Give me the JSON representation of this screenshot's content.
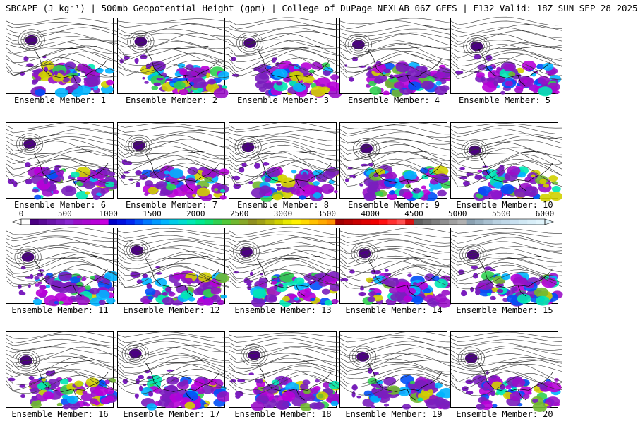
{
  "title": "SBCAPE (J kg⁻¹) | 500mb Geopotential Height (gpm) | College of DuPage NEXLAB 06Z GEFS | F132 Valid: 18Z SUN SEP 28 2025",
  "panel_label_prefix": "Ensemble Member:",
  "members": [
    {
      "label": "Ensemble Member: 1"
    },
    {
      "label": "Ensemble Member: 2"
    },
    {
      "label": "Ensemble Member: 3"
    },
    {
      "label": "Ensemble Member: 4"
    },
    {
      "label": "Ensemble Member: 5"
    },
    {
      "label": "Ensemble Member: 6"
    },
    {
      "label": "Ensemble Member: 7"
    },
    {
      "label": "Ensemble Member: 8"
    },
    {
      "label": "Ensemble Member: 9"
    },
    {
      "label": "Ensemble Member: 10"
    },
    {
      "label": "Ensemble Member: 11"
    },
    {
      "label": "Ensemble Member: 12"
    },
    {
      "label": "Ensemble Member: 13"
    },
    {
      "label": "Ensemble Member: 14"
    },
    {
      "label": "Ensemble Member: 15"
    },
    {
      "label": "Ensemble Member: 16"
    },
    {
      "label": "Ensemble Member: 17"
    },
    {
      "label": "Ensemble Member: 18"
    },
    {
      "label": "Ensemble Member: 19"
    },
    {
      "label": "Ensemble Member: 20"
    }
  ],
  "colorbar": {
    "min": 0,
    "max": 6000,
    "step": 100,
    "tick_labels": [
      "0",
      "500",
      "1000",
      "1500",
      "2000",
      "2500",
      "3000",
      "3500",
      "4000",
      "4500",
      "5000",
      "5500",
      "6000"
    ],
    "tick_values": [
      0,
      500,
      1000,
      1500,
      2000,
      2500,
      3000,
      3500,
      4000,
      4500,
      5000,
      5500,
      6000
    ],
    "colors": [
      "#ffffff",
      "#4b0082",
      "#5a0a96",
      "#6a14aa",
      "#7a1ebe",
      "#8a28d2",
      "#9a10c8",
      "#aa08d0",
      "#b800d8",
      "#c800e0",
      "#0000c8",
      "#0010e0",
      "#0028f0",
      "#0050f8",
      "#0078ff",
      "#0098ff",
      "#00b4ff",
      "#00cce8",
      "#00dcd0",
      "#00e8b4",
      "#00e890",
      "#10e070",
      "#30d050",
      "#50c838",
      "#70b830",
      "#88a828",
      "#909020",
      "#a0a018",
      "#b8b810",
      "#d0d000",
      "#e8e800",
      "#fff000",
      "#ffd800",
      "#ffc000",
      "#ffa800",
      "#ff9000",
      "#a00000",
      "#b40000",
      "#c80000",
      "#dc0000",
      "#f00000",
      "#ff1010",
      "#ff3030",
      "#ff5050",
      "#d81010",
      "#606060",
      "#707070",
      "#808080",
      "#909090",
      "#a0a0a0",
      "#b0b0b0",
      "#8aa0b0",
      "#98b0c0",
      "#a8c0d0",
      "#b8d0e0",
      "#c0d8e8",
      "#c8e0f0",
      "#d0e8f4",
      "#d8eef8",
      "#e0f4fc"
    ]
  }
}
